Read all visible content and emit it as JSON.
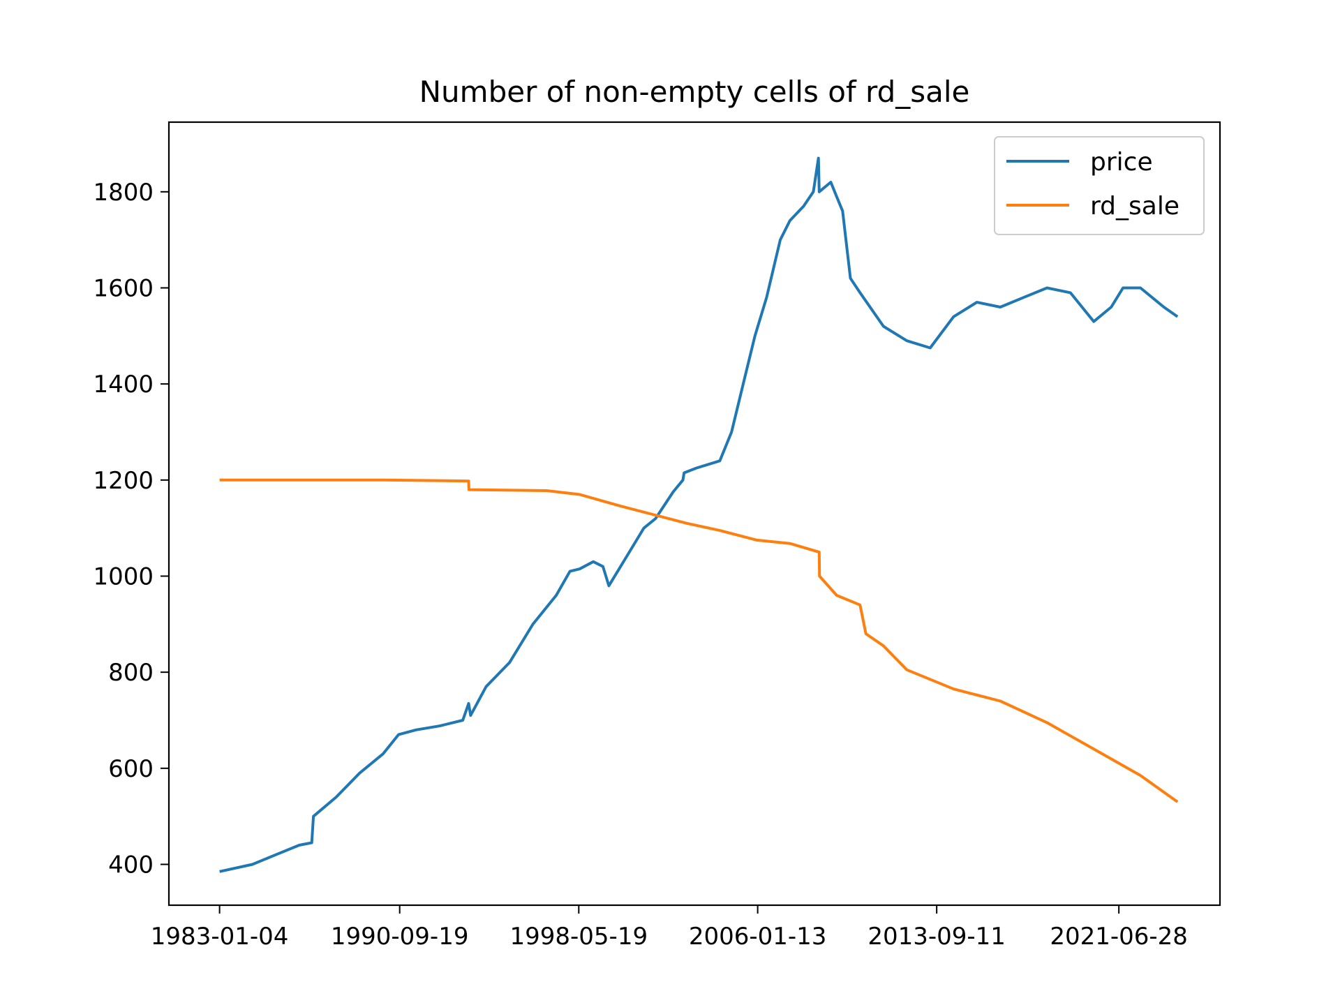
{
  "chart_data": {
    "type": "line",
    "title": "Number of non-empty cells of rd_sale",
    "xlabel": "",
    "ylabel": "",
    "x_ticks": [
      "1983-01-04",
      "1990-09-19",
      "1998-05-19",
      "2006-01-13",
      "2013-09-11",
      "2021-06-28"
    ],
    "y_ticks": [
      400,
      600,
      800,
      1000,
      1200,
      1400,
      1600,
      1800
    ],
    "xlim": [
      "1980-11-03",
      "2025-10-25"
    ],
    "ylim": [
      315,
      1945
    ],
    "grid": false,
    "legend": "top-right",
    "colors": {
      "price": "#1f77b4",
      "rd_sale": "#ff7f0e"
    },
    "series": [
      {
        "name": "price",
        "x": [
          "1983-01-04",
          "1984-06-01",
          "1985-06-01",
          "1986-06-01",
          "1986-12-15",
          "1987-01-10",
          "1988-01-01",
          "1989-01-01",
          "1990-01-01",
          "1990-09-01",
          "1991-06-01",
          "1992-06-01",
          "1993-06-01",
          "1993-09-01",
          "1993-10-01",
          "1994-06-01",
          "1995-06-01",
          "1996-06-01",
          "1997-06-01",
          "1998-01-01",
          "1998-06-01",
          "1999-01-01",
          "1999-06-01",
          "1999-09-01",
          "2000-06-01",
          "2001-03-01",
          "2001-09-01",
          "2002-06-01",
          "2002-11-01",
          "2002-11-20",
          "2003-06-01",
          "2004-06-01",
          "2004-12-01",
          "2005-06-01",
          "2005-12-01",
          "2006-06-01",
          "2007-01-01",
          "2007-06-01",
          "2008-01-01",
          "2008-06-01",
          "2008-08-20",
          "2008-09-01",
          "2009-03-01",
          "2009-06-01",
          "2009-09-01",
          "2010-01-01",
          "2010-06-01",
          "2011-06-01",
          "2012-06-01",
          "2013-06-01",
          "2014-06-01",
          "2015-06-01",
          "2016-06-01",
          "2017-06-01",
          "2018-06-01",
          "2019-06-01",
          "2020-06-01",
          "2021-03-01",
          "2021-09-01",
          "2022-06-01",
          "2023-06-01",
          "2024-01-01"
        ],
        "values": [
          385,
          400,
          420,
          440,
          445,
          500,
          540,
          590,
          630,
          670,
          680,
          688,
          700,
          735,
          710,
          770,
          820,
          900,
          960,
          1010,
          1015,
          1030,
          1020,
          980,
          1040,
          1100,
          1120,
          1175,
          1200,
          1215,
          1225,
          1240,
          1300,
          1400,
          1500,
          1580,
          1700,
          1740,
          1770,
          1800,
          1870,
          1800,
          1820,
          1790,
          1760,
          1620,
          1590,
          1520,
          1490,
          1475,
          1540,
          1570,
          1560,
          1580,
          1600,
          1590,
          1530,
          1560,
          1600,
          1600,
          1560,
          1540
        ]
      },
      {
        "name": "rd_sale",
        "x": [
          "1983-01-04",
          "1990-01-01",
          "1993-09-01",
          "1993-09-05",
          "1997-01-01",
          "1998-06-01",
          "2000-01-01",
          "2001-06-01",
          "2003-01-01",
          "2004-06-01",
          "2006-01-01",
          "2007-06-01",
          "2008-09-01",
          "2008-09-05",
          "2009-06-01",
          "2010-06-01",
          "2010-09-01",
          "2011-06-01",
          "2012-06-01",
          "2014-06-01",
          "2016-06-01",
          "2018-06-01",
          "2020-06-01",
          "2022-06-01",
          "2024-01-01"
        ],
        "values": [
          1200,
          1200,
          1198,
          1180,
          1178,
          1170,
          1148,
          1130,
          1110,
          1095,
          1075,
          1068,
          1050,
          1000,
          960,
          940,
          880,
          855,
          805,
          765,
          740,
          695,
          640,
          585,
          530
        ]
      }
    ]
  }
}
